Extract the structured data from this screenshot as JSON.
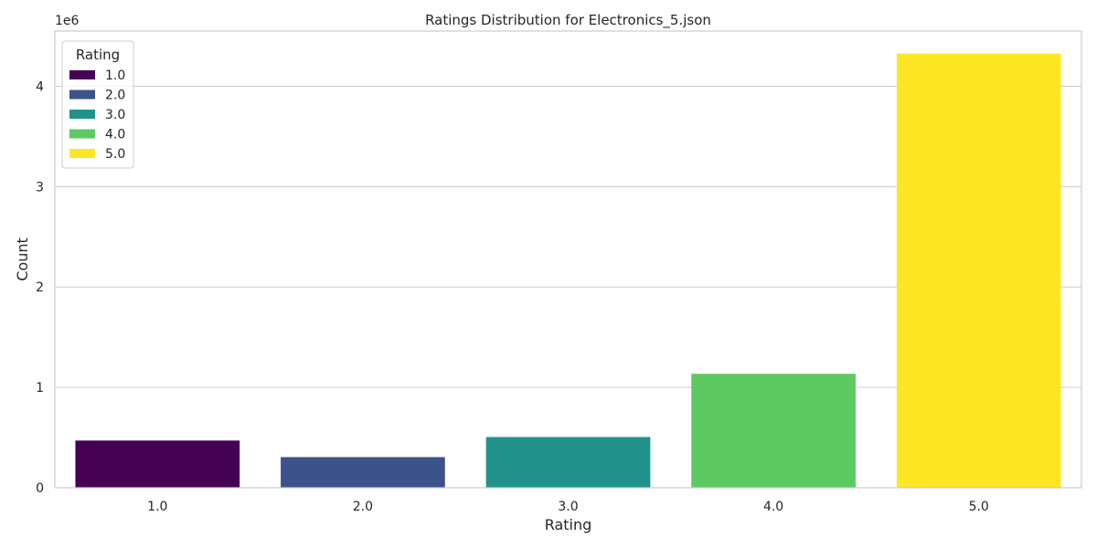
{
  "chart_data": {
    "type": "bar",
    "title": "Ratings Distribution for Electronics_5.json",
    "xlabel": "Rating",
    "ylabel": "Count",
    "y_offset_label": "1e6",
    "y_scale": 1000000,
    "categories": [
      "1.0",
      "2.0",
      "3.0",
      "4.0",
      "5.0"
    ],
    "values": [
      470000,
      305000,
      505000,
      1135000,
      4325000
    ],
    "colors": [
      "#440154",
      "#3b528b",
      "#21918c",
      "#5ec962",
      "#fde725"
    ],
    "ylim": [
      0,
      4550000
    ],
    "yticks": [
      0,
      1000000,
      2000000,
      3000000,
      4000000
    ],
    "ytick_labels": [
      "0",
      "1",
      "2",
      "3",
      "4"
    ],
    "grid": true,
    "legend": {
      "title": "Rating",
      "placement": "top-left",
      "entries": [
        "1.0",
        "2.0",
        "3.0",
        "4.0",
        "5.0"
      ]
    }
  }
}
